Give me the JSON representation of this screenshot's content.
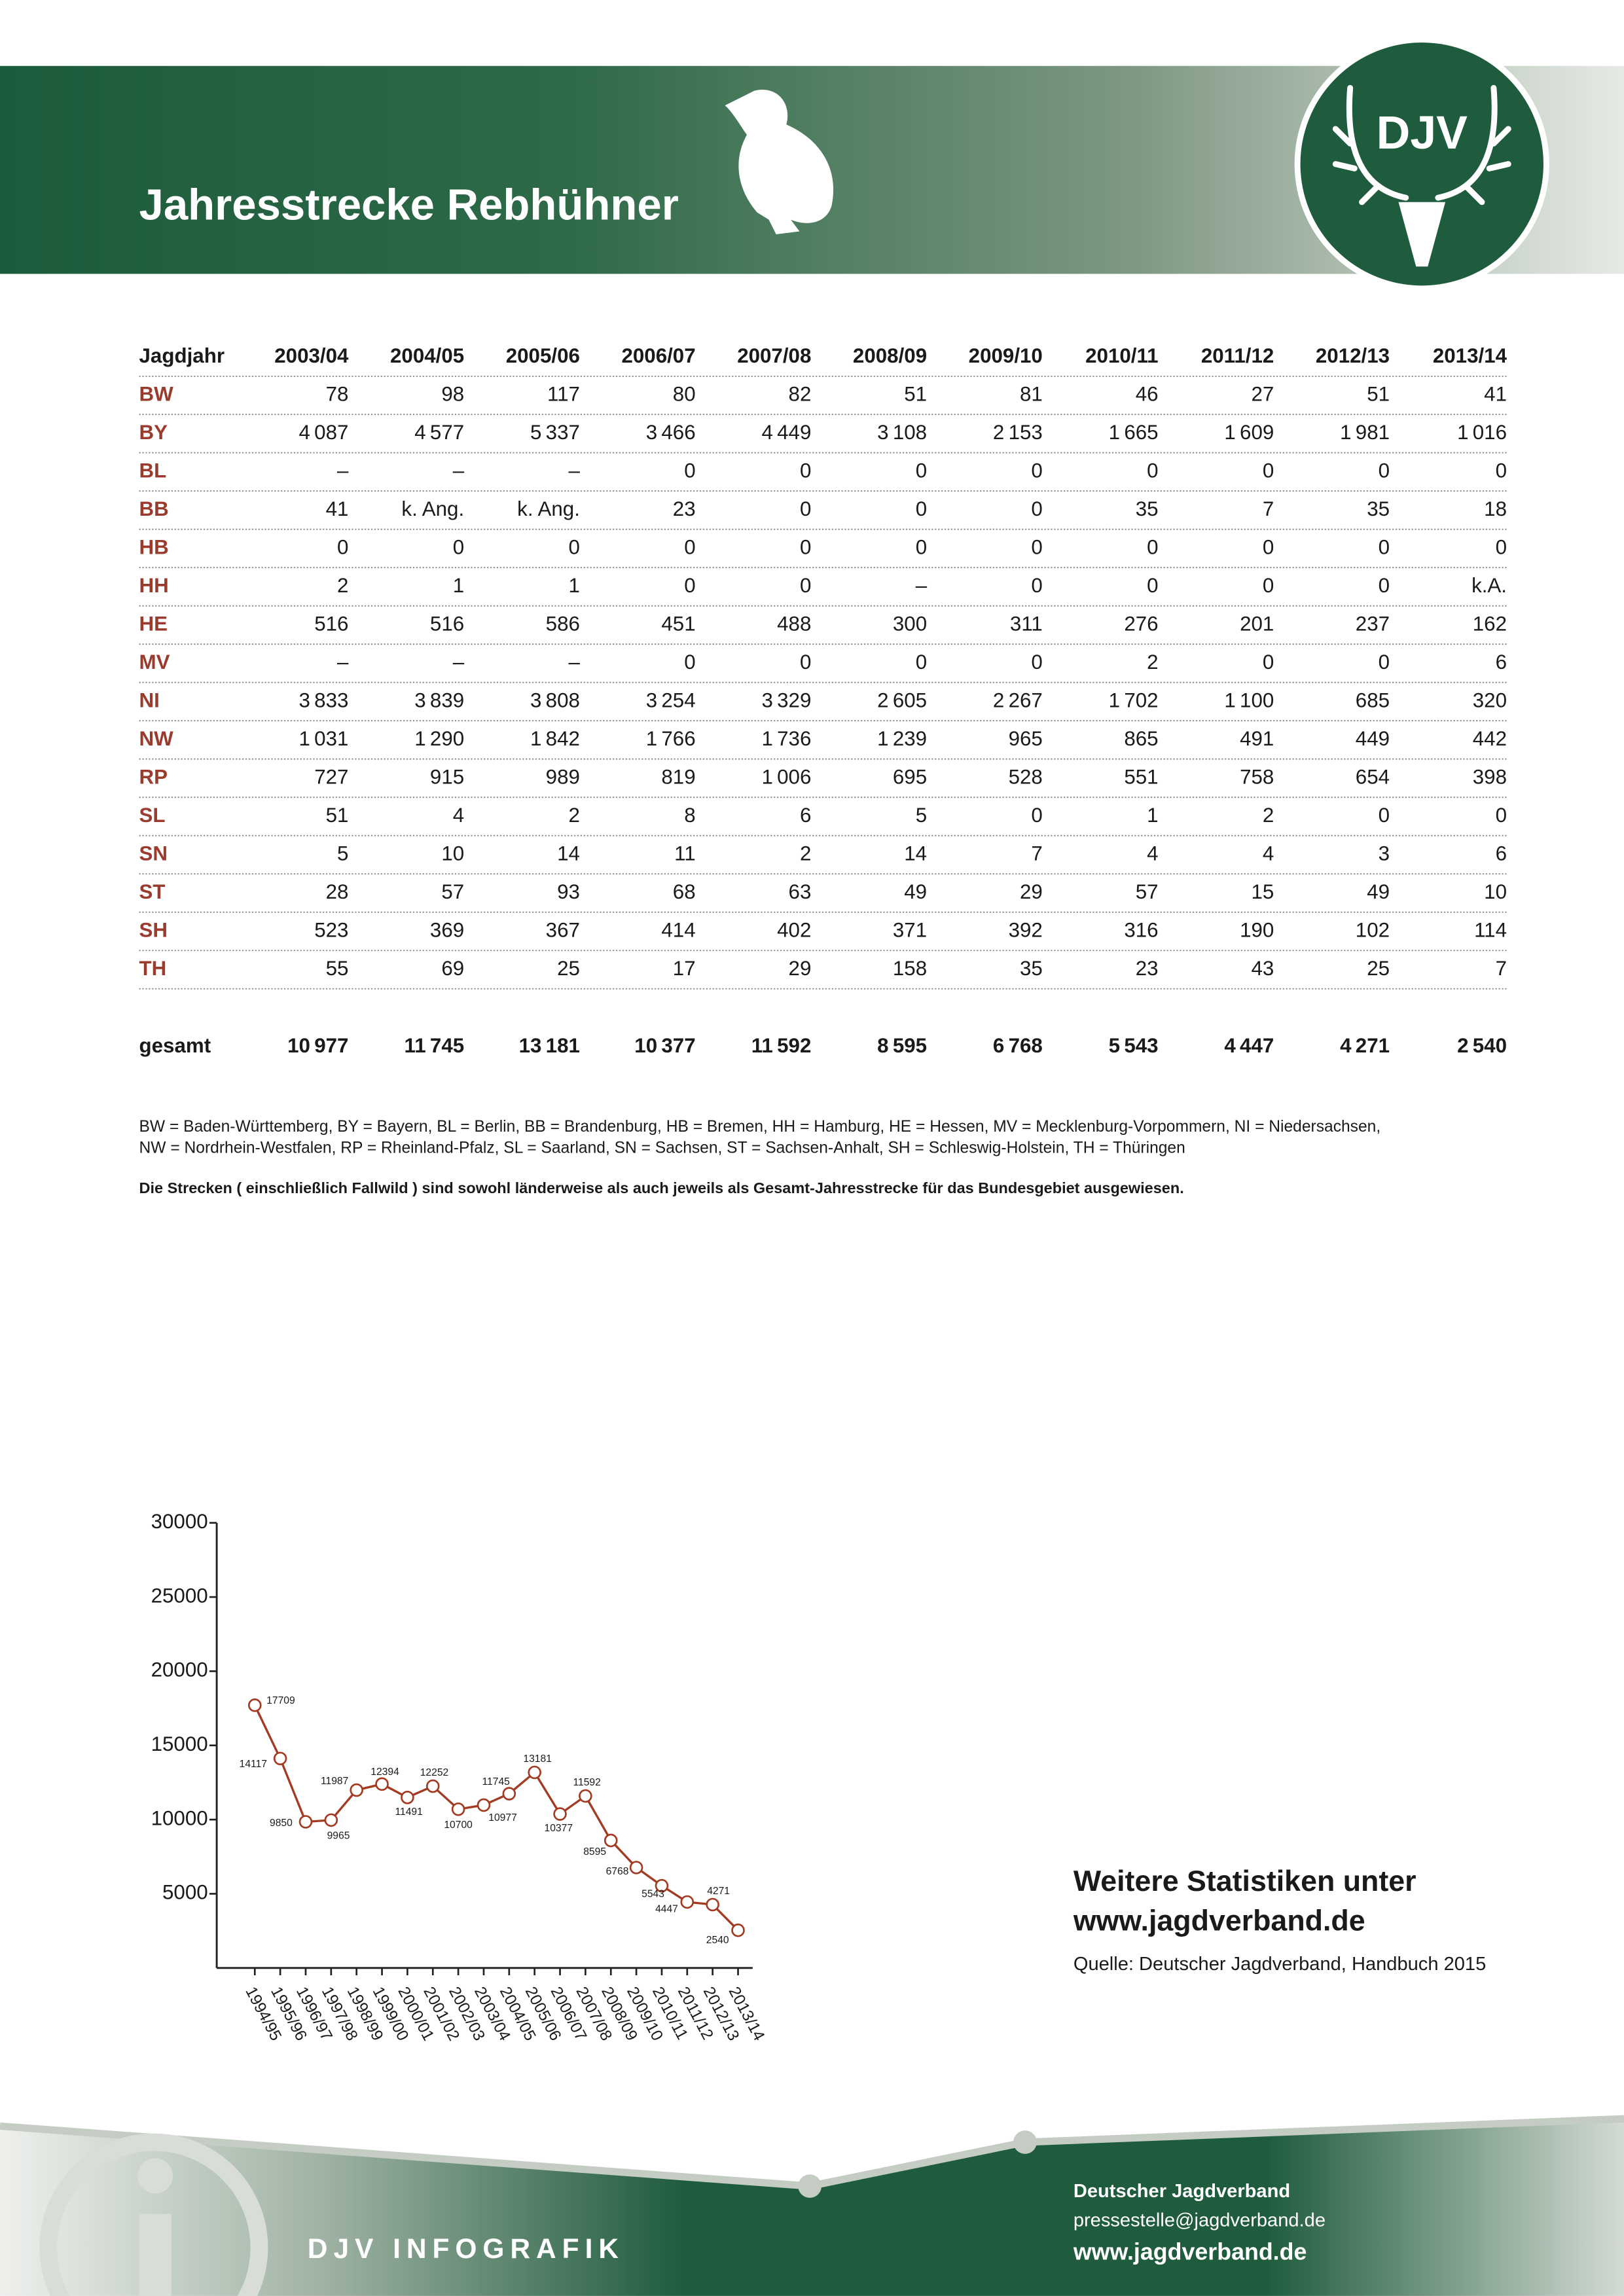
{
  "header": {
    "title": "Jahresstrecke Rebhühner",
    "logo": "DJV"
  },
  "table": {
    "columns": [
      "Jagdjahr",
      "2003/04",
      "2004/05",
      "2005/06",
      "2006/07",
      "2007/08",
      "2008/09",
      "2009/10",
      "2010/11",
      "2011/12",
      "2012/13",
      "2013/14"
    ],
    "rows": [
      [
        "BW",
        "78",
        "98",
        "117",
        "80",
        "82",
        "51",
        "81",
        "46",
        "27",
        "51",
        "41"
      ],
      [
        "BY",
        "4 087",
        "4 577",
        "5 337",
        "3 466",
        "4 449",
        "3 108",
        "2 153",
        "1 665",
        "1 609",
        "1 981",
        "1 016"
      ],
      [
        "BL",
        "–",
        "–",
        "–",
        "0",
        "0",
        "0",
        "0",
        "0",
        "0",
        "0",
        "0"
      ],
      [
        "BB",
        "41",
        "k. Ang.",
        "k. Ang.",
        "23",
        "0",
        "0",
        "0",
        "35",
        "7",
        "35",
        "18"
      ],
      [
        "HB",
        "0",
        "0",
        "0",
        "0",
        "0",
        "0",
        "0",
        "0",
        "0",
        "0",
        "0"
      ],
      [
        "HH",
        "2",
        "1",
        "1",
        "0",
        "0",
        "–",
        "0",
        "0",
        "0",
        "0",
        "k.A."
      ],
      [
        "HE",
        "516",
        "516",
        "586",
        "451",
        "488",
        "300",
        "311",
        "276",
        "201",
        "237",
        "162"
      ],
      [
        "MV",
        "–",
        "–",
        "–",
        "0",
        "0",
        "0",
        "0",
        "2",
        "0",
        "0",
        "6"
      ],
      [
        "NI",
        "3 833",
        "3 839",
        "3 808",
        "3 254",
        "3 329",
        "2 605",
        "2 267",
        "1 702",
        "1 100",
        "685",
        "320"
      ],
      [
        "NW",
        "1 031",
        "1 290",
        "1 842",
        "1 766",
        "1 736",
        "1 239",
        "965",
        "865",
        "491",
        "449",
        "442"
      ],
      [
        "RP",
        "727",
        "915",
        "989",
        "819",
        "1 006",
        "695",
        "528",
        "551",
        "758",
        "654",
        "398"
      ],
      [
        "SL",
        "51",
        "4",
        "2",
        "8",
        "6",
        "5",
        "0",
        "1",
        "2",
        "0",
        "0"
      ],
      [
        "SN",
        "5",
        "10",
        "14",
        "11",
        "2",
        "14",
        "7",
        "4",
        "4",
        "3",
        "6"
      ],
      [
        "ST",
        "28",
        "57",
        "93",
        "68",
        "63",
        "49",
        "29",
        "57",
        "15",
        "49",
        "10"
      ],
      [
        "SH",
        "523",
        "369",
        "367",
        "414",
        "402",
        "371",
        "392",
        "316",
        "190",
        "102",
        "114"
      ],
      [
        "TH",
        "55",
        "69",
        "25",
        "17",
        "29",
        "158",
        "35",
        "23",
        "43",
        "25",
        "7"
      ]
    ],
    "total": [
      "gesamt",
      "10 977",
      "11 745",
      "13 181",
      "10 377",
      "11 592",
      "8 595",
      "6 768",
      "5 543",
      "4 447",
      "4 271",
      "2 540"
    ]
  },
  "notes": {
    "abbreviations": [
      "BW = Baden-Württemberg, BY = Bayern, BL = Berlin, BB = Brandenburg, HB = Bremen, HH = Hamburg, HE = Hessen, MV = Mecklenburg-Vorpommern, NI = Niedersachsen,",
      "NW = Nordrhein-Westfalen, RP = Rheinland-Pfalz, SL = Saarland, SN = Sachsen, ST = Sachsen-Anhalt, SH = Schleswig-Holstein, TH = Thüringen"
    ],
    "scope": "Die Strecken ( einschließlich Fallwild ) sind sowohl länderweise als auch jeweils als Gesamt-Jahresstrecke für das Bundesgebiet ausgewiesen."
  },
  "chart_data": {
    "type": "line",
    "categories": [
      "1994/95",
      "1995/96",
      "1996/97",
      "1997/98",
      "1998/99",
      "1999/00",
      "2000/01",
      "2001/02",
      "2002/03",
      "2003/04",
      "2004/05",
      "2005/06",
      "2006/07",
      "2007/08",
      "2008/09",
      "2009/10",
      "2010/11",
      "2011/12",
      "2012/13",
      "2013/14"
    ],
    "values": [
      17709,
      14117,
      9850,
      9965,
      11987,
      12394,
      11491,
      12252,
      10700,
      10977,
      11745,
      13181,
      10377,
      11592,
      8595,
      6768,
      5543,
      4447,
      4271,
      2540
    ],
    "color": "#a33b22",
    "ylim": [
      0,
      30000
    ],
    "yticks": [
      5000,
      10000,
      15000,
      20000,
      25000,
      30000
    ]
  },
  "aside": {
    "heading": [
      "Weitere Statistiken unter",
      "www.jagdverband.de"
    ],
    "source": "Quelle: Deutscher Jagdverband, Handbuch 2015"
  },
  "footer": {
    "label": "DJV INFOGRAFIK",
    "org": "Deutscher Jagdverband",
    "email": "pressestelle@jagdverband.de",
    "web": "www.jagdverband.de"
  }
}
